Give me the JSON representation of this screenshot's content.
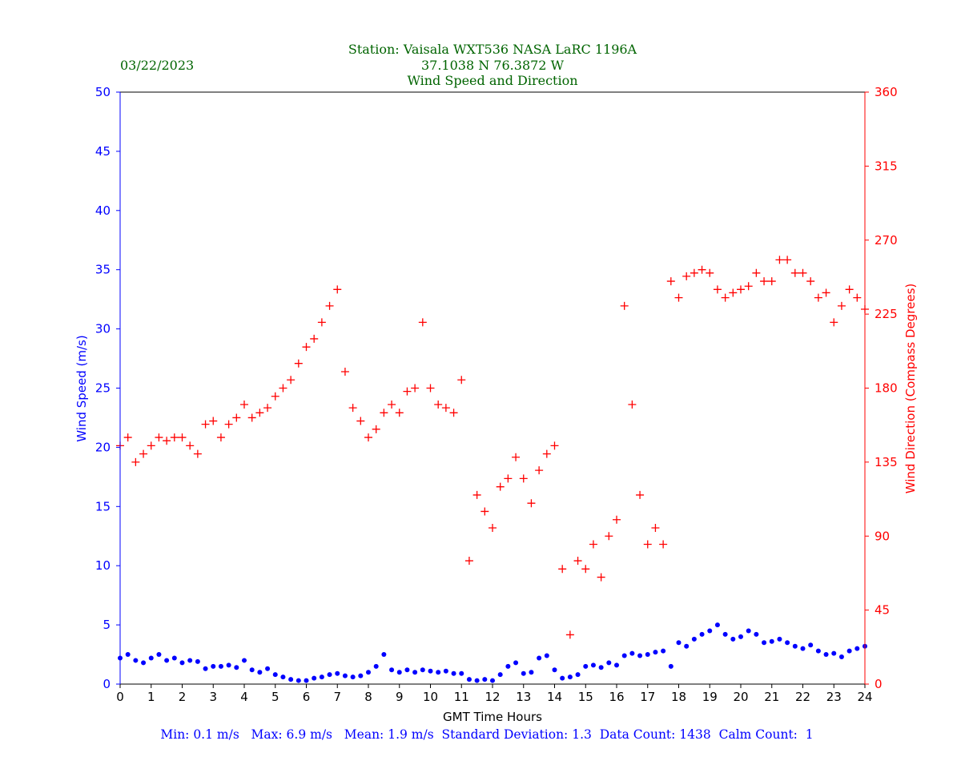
{
  "header": {
    "date": "03/22/2023",
    "station": "Station:  Vaisala WXT536  NASA LaRC 1196A",
    "coords": "37.1038 N 76.3872 W",
    "subtitle": "Wind Speed and Direction"
  },
  "footer": {
    "stats": "Min: 0.1 m/s   Max: 6.9 m/s   Mean: 1.9 m/s  Standard Deviation: 1.3  Data Count: 1438  Calm Count:  1"
  },
  "colors": {
    "title": "#006400",
    "speed": "#0000ff",
    "direction": "#ff0000",
    "stats": "#0000ff"
  },
  "chart_data": {
    "type": "scatter",
    "title": "Wind Speed and Direction",
    "xlabel": "GMT Time Hours",
    "ylabel": "Wind Speed (m/s)",
    "y2label": "Wind Direction (Compass Degrees)",
    "xlim": [
      0,
      24
    ],
    "ylim": [
      0,
      50
    ],
    "y2lim": [
      0,
      360
    ],
    "xticks": [
      0,
      1,
      2,
      3,
      4,
      5,
      6,
      7,
      8,
      9,
      10,
      11,
      12,
      13,
      14,
      15,
      16,
      17,
      18,
      19,
      20,
      21,
      22,
      23,
      24
    ],
    "yticks": [
      0,
      5,
      10,
      15,
      20,
      25,
      30,
      35,
      40,
      45,
      50
    ],
    "y2ticks": [
      0,
      45,
      90,
      135,
      180,
      225,
      270,
      315,
      360
    ],
    "x_step_hours": 0.25,
    "series": [
      {
        "name": "Wind Speed",
        "axis": "left",
        "marker": "dot",
        "values": [
          2.2,
          2.5,
          2.0,
          1.8,
          2.2,
          2.5,
          2.0,
          2.2,
          1.8,
          2.0,
          1.9,
          1.3,
          1.5,
          1.5,
          1.6,
          1.4,
          2.0,
          1.2,
          1.0,
          1.3,
          0.8,
          0.6,
          0.4,
          0.3,
          0.3,
          0.5,
          0.6,
          0.8,
          0.9,
          0.7,
          0.6,
          0.7,
          1.0,
          1.5,
          2.5,
          1.2,
          1.0,
          1.2,
          1.0,
          1.2,
          1.1,
          1.0,
          1.1,
          0.9,
          0.9,
          0.4,
          0.3,
          0.4,
          0.3,
          0.8,
          1.5,
          1.8,
          0.9,
          1.0,
          2.2,
          2.4,
          1.2,
          0.5,
          0.6,
          0.8,
          1.5,
          1.6,
          1.4,
          1.8,
          1.6,
          2.4,
          2.6,
          2.4,
          2.5,
          2.7,
          2.8,
          1.5,
          3.5,
          3.2,
          3.8,
          4.2,
          4.5,
          5.0,
          4.2,
          3.8,
          4.0,
          4.5,
          4.2,
          3.5,
          3.6,
          3.8,
          3.5,
          3.2,
          3.0,
          3.3,
          2.8,
          2.5,
          2.6,
          2.3,
          2.8,
          3.0,
          3.2
        ]
      },
      {
        "name": "Wind Direction",
        "axis": "right",
        "marker": "plus",
        "values": [
          145,
          150,
          135,
          140,
          145,
          150,
          148,
          150,
          150,
          145,
          140,
          158,
          160,
          150,
          158,
          162,
          170,
          162,
          165,
          168,
          175,
          180,
          185,
          195,
          205,
          210,
          220,
          230,
          240,
          190,
          168,
          160,
          150,
          155,
          165,
          170,
          165,
          178,
          180,
          220,
          180,
          170,
          168,
          165,
          185,
          75,
          115,
          105,
          95,
          120,
          125,
          138,
          125,
          110,
          130,
          140,
          145,
          70,
          30,
          75,
          70,
          85,
          65,
          90,
          100,
          230,
          170,
          115,
          85,
          95,
          85,
          245,
          235,
          248,
          250,
          252,
          250,
          240,
          235,
          238,
          240,
          242,
          250,
          245,
          245,
          258,
          258,
          250,
          250,
          245,
          235,
          238,
          220,
          230,
          240,
          235,
          228
        ]
      }
    ]
  }
}
